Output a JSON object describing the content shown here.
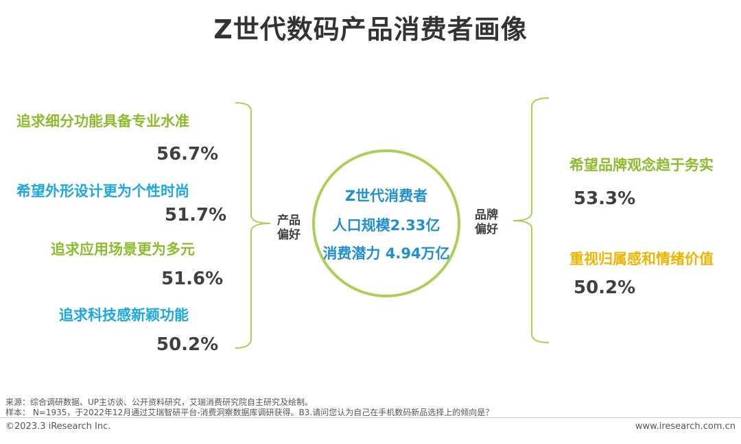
{
  "title": "Z世代数码产品消费者画像",
  "colors": {
    "green": "#8dbb2e",
    "blue": "#1ba7e0",
    "yellow": "#f0b400",
    "circle": "#a9d055",
    "circle_text": "#1f8fd0"
  },
  "left": {
    "side_label": [
      "产品",
      "偏好"
    ],
    "items": [
      {
        "label": "追求细分功能具备专业水准",
        "value": "56.7%"
      },
      {
        "label": "希望外形设计更为个性时尚",
        "value": "51.7%"
      },
      {
        "label": "追求应用场景更为多元",
        "value": "51.6%"
      },
      {
        "label": "追求科技感新颖功能",
        "value": "50.2%"
      }
    ]
  },
  "center": {
    "line1": "Z世代消费者",
    "line2": "人口规模2.33亿",
    "line3": "消费潜力 4.94万亿"
  },
  "right": {
    "side_label": [
      "品牌",
      "偏好"
    ],
    "items": [
      {
        "label": "希望品牌观念趋于务实",
        "value": "53.3%"
      },
      {
        "label": "重视归属感和情绪价值",
        "value": "50.2%"
      }
    ]
  },
  "footer": {
    "source": "来源：综合调研数据、UP主访谈、公开资料研究，艾瑞消费研究院自主研究及绘制。",
    "sample": "样本： N=1935，于2022年12月通过艾瑞智研平台-消费洞察数据库调研获得。B3.请问您认为自己在手机数码新品选择上的倾向是？",
    "copyright": "©2023.3 iResearch Inc.",
    "website": "www.iresearch.com.cn"
  }
}
